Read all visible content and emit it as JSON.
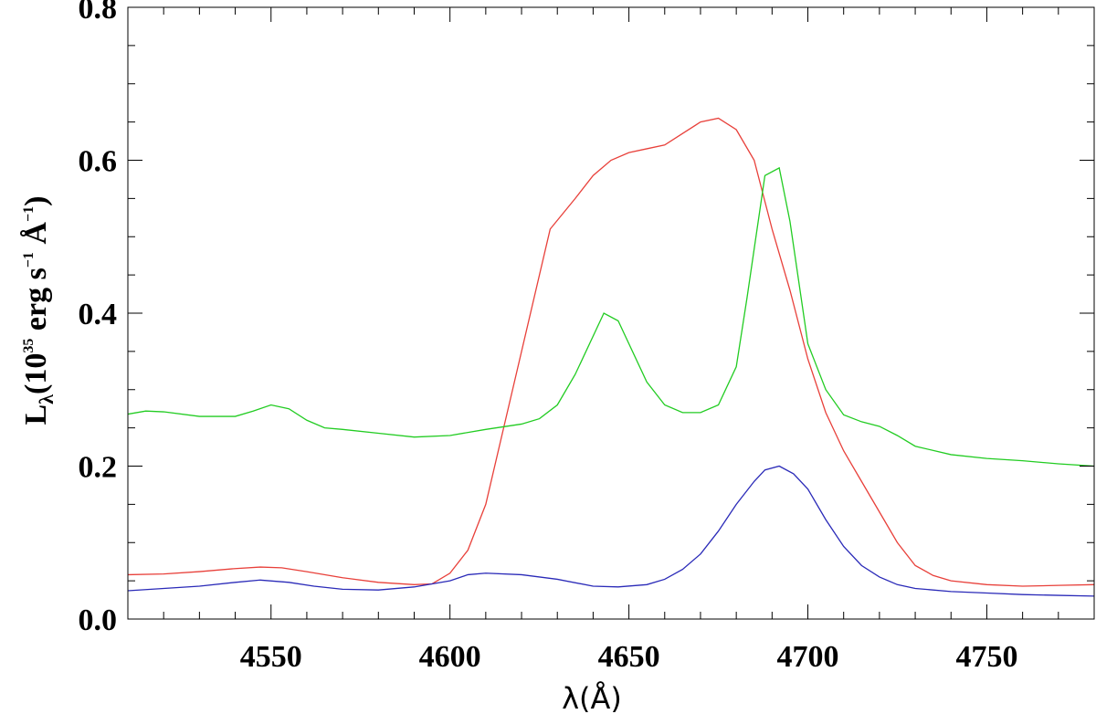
{
  "chart_data": {
    "type": "line",
    "title": "",
    "xlabel": "λ(Å)",
    "ylabel": {
      "main": "L",
      "sub": "λ",
      "pre": "(10",
      "exp": "35",
      "mid1": " erg s",
      "exp2": "−1",
      "mid2": " Å",
      "exp3": "−1",
      "post": ")"
    },
    "xlim": [
      4510,
      4780
    ],
    "ylim": [
      0.0,
      0.8
    ],
    "x_ticks": [
      4550,
      4600,
      4650,
      4700,
      4750
    ],
    "x_tick_labels": [
      "4550",
      "4600",
      "4650",
      "4700",
      "4750"
    ],
    "y_ticks": [
      0.0,
      0.2,
      0.4,
      0.6,
      0.8
    ],
    "y_tick_labels": [
      "0.0",
      "0.2",
      "0.4",
      "0.6",
      "0.8"
    ],
    "grid": false,
    "series": [
      {
        "color": "#e8403a",
        "points": [
          [
            4510,
            0.058
          ],
          [
            4520,
            0.059
          ],
          [
            4530,
            0.062
          ],
          [
            4540,
            0.066
          ],
          [
            4547,
            0.068
          ],
          [
            4553,
            0.067
          ],
          [
            4560,
            0.062
          ],
          [
            4570,
            0.054
          ],
          [
            4580,
            0.048
          ],
          [
            4590,
            0.045
          ],
          [
            4595,
            0.046
          ],
          [
            4600,
            0.06
          ],
          [
            4605,
            0.09
          ],
          [
            4610,
            0.15
          ],
          [
            4615,
            0.25
          ],
          [
            4620,
            0.35
          ],
          [
            4625,
            0.45
          ],
          [
            4628,
            0.51
          ],
          [
            4635,
            0.55
          ],
          [
            4640,
            0.58
          ],
          [
            4645,
            0.6
          ],
          [
            4650,
            0.61
          ],
          [
            4655,
            0.615
          ],
          [
            4660,
            0.62
          ],
          [
            4665,
            0.635
          ],
          [
            4670,
            0.65
          ],
          [
            4675,
            0.655
          ],
          [
            4680,
            0.64
          ],
          [
            4685,
            0.6
          ],
          [
            4690,
            0.51
          ],
          [
            4695,
            0.43
          ],
          [
            4700,
            0.34
          ],
          [
            4705,
            0.27
          ],
          [
            4710,
            0.22
          ],
          [
            4715,
            0.18
          ],
          [
            4720,
            0.14
          ],
          [
            4725,
            0.1
          ],
          [
            4730,
            0.07
          ],
          [
            4735,
            0.057
          ],
          [
            4740,
            0.05
          ],
          [
            4750,
            0.045
          ],
          [
            4760,
            0.043
          ],
          [
            4770,
            0.044
          ],
          [
            4780,
            0.045
          ]
        ]
      },
      {
        "color": "#22cc22",
        "points": [
          [
            4510,
            0.268
          ],
          [
            4515,
            0.272
          ],
          [
            4520,
            0.271
          ],
          [
            4530,
            0.265
          ],
          [
            4540,
            0.265
          ],
          [
            4545,
            0.272
          ],
          [
            4550,
            0.28
          ],
          [
            4555,
            0.275
          ],
          [
            4560,
            0.26
          ],
          [
            4565,
            0.25
          ],
          [
            4570,
            0.248
          ],
          [
            4580,
            0.243
          ],
          [
            4590,
            0.238
          ],
          [
            4600,
            0.24
          ],
          [
            4610,
            0.248
          ],
          [
            4620,
            0.255
          ],
          [
            4625,
            0.262
          ],
          [
            4630,
            0.28
          ],
          [
            4635,
            0.32
          ],
          [
            4640,
            0.37
          ],
          [
            4643,
            0.4
          ],
          [
            4647,
            0.39
          ],
          [
            4650,
            0.36
          ],
          [
            4655,
            0.31
          ],
          [
            4660,
            0.28
          ],
          [
            4665,
            0.27
          ],
          [
            4670,
            0.27
          ],
          [
            4675,
            0.28
          ],
          [
            4680,
            0.33
          ],
          [
            4683,
            0.42
          ],
          [
            4688,
            0.58
          ],
          [
            4692,
            0.59
          ],
          [
            4695,
            0.52
          ],
          [
            4700,
            0.36
          ],
          [
            4705,
            0.3
          ],
          [
            4710,
            0.267
          ],
          [
            4715,
            0.258
          ],
          [
            4720,
            0.252
          ],
          [
            4725,
            0.24
          ],
          [
            4730,
            0.226
          ],
          [
            4740,
            0.215
          ],
          [
            4750,
            0.21
          ],
          [
            4760,
            0.207
          ],
          [
            4770,
            0.203
          ],
          [
            4780,
            0.2
          ]
        ]
      },
      {
        "color": "#2a2ab8",
        "points": [
          [
            4510,
            0.037
          ],
          [
            4520,
            0.04
          ],
          [
            4530,
            0.043
          ],
          [
            4540,
            0.048
          ],
          [
            4547,
            0.051
          ],
          [
            4555,
            0.048
          ],
          [
            4562,
            0.043
          ],
          [
            4570,
            0.039
          ],
          [
            4580,
            0.038
          ],
          [
            4590,
            0.042
          ],
          [
            4600,
            0.05
          ],
          [
            4605,
            0.058
          ],
          [
            4610,
            0.06
          ],
          [
            4620,
            0.058
          ],
          [
            4630,
            0.052
          ],
          [
            4640,
            0.043
          ],
          [
            4647,
            0.042
          ],
          [
            4655,
            0.045
          ],
          [
            4660,
            0.052
          ],
          [
            4665,
            0.065
          ],
          [
            4670,
            0.085
          ],
          [
            4675,
            0.115
          ],
          [
            4680,
            0.15
          ],
          [
            4685,
            0.18
          ],
          [
            4688,
            0.195
          ],
          [
            4692,
            0.2
          ],
          [
            4696,
            0.19
          ],
          [
            4700,
            0.17
          ],
          [
            4705,
            0.13
          ],
          [
            4710,
            0.095
          ],
          [
            4715,
            0.07
          ],
          [
            4720,
            0.055
          ],
          [
            4725,
            0.045
          ],
          [
            4730,
            0.04
          ],
          [
            4740,
            0.036
          ],
          [
            4750,
            0.034
          ],
          [
            4760,
            0.032
          ],
          [
            4770,
            0.031
          ],
          [
            4780,
            0.03
          ]
        ]
      }
    ]
  }
}
